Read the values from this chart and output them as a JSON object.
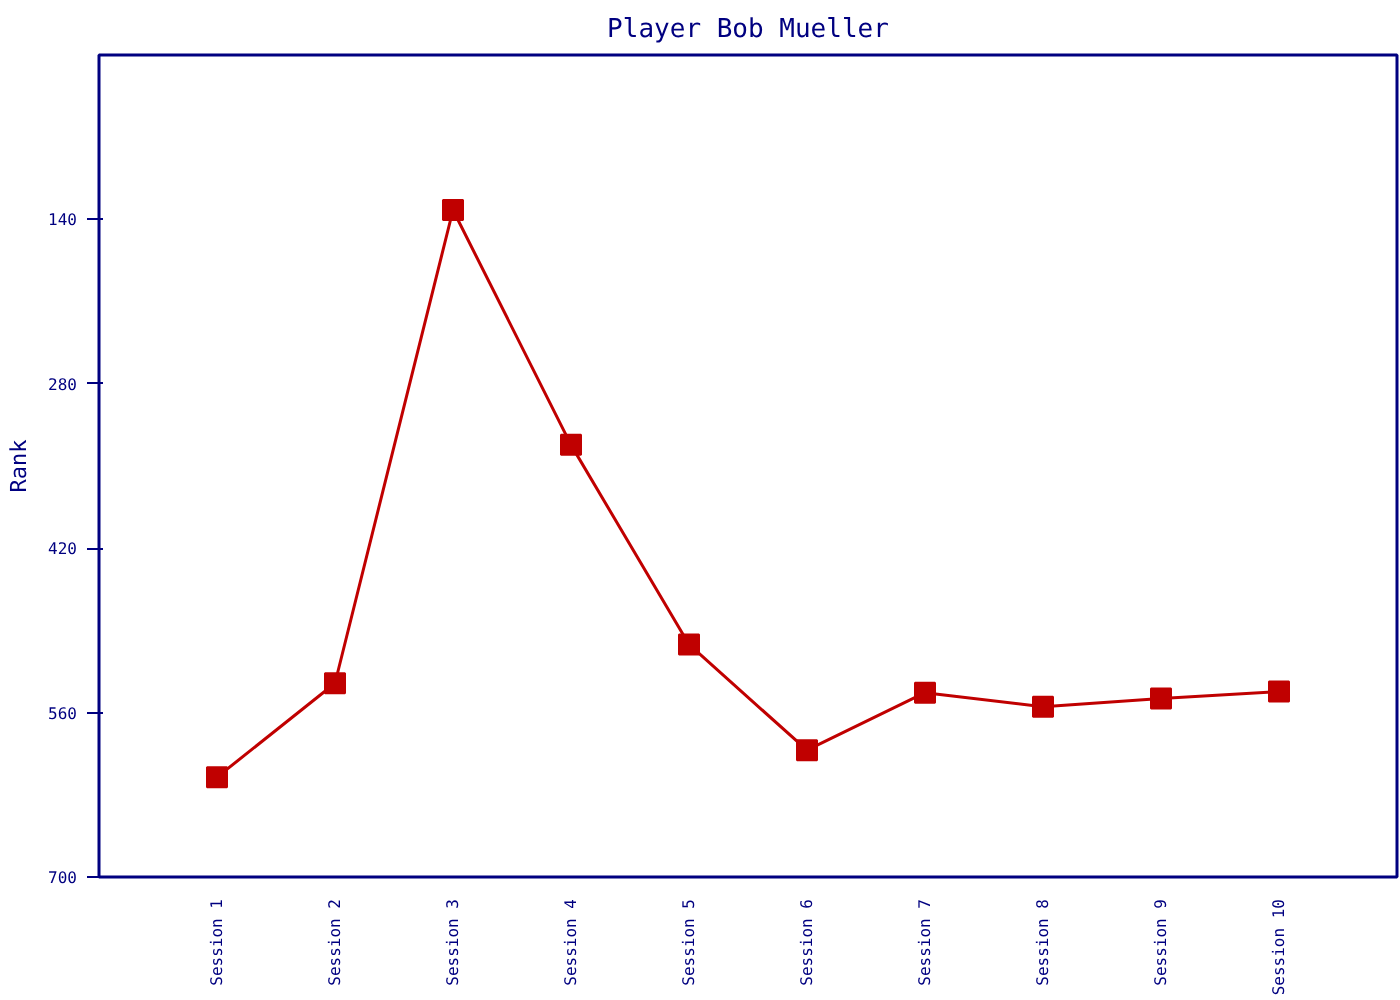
{
  "chart_data": {
    "type": "line",
    "title": "Player Bob Mueller",
    "ylabel": "Rank",
    "categories": [
      "Session 1",
      "Session 2",
      "Session 3",
      "Session 4",
      "Session 5",
      "Session 6",
      "Session 7",
      "Session 8",
      "Session 9",
      "Session 10"
    ],
    "series": [
      {
        "color": "#c00000",
        "values": [
          615,
          535,
          132,
          332,
          502,
          592,
          543,
          555,
          548,
          542
        ]
      }
    ],
    "ylim": [
      700,
      0
    ],
    "yticks": [
      140,
      280,
      420,
      560,
      700
    ],
    "grid": false,
    "marker": "square",
    "line_style": "solid"
  }
}
